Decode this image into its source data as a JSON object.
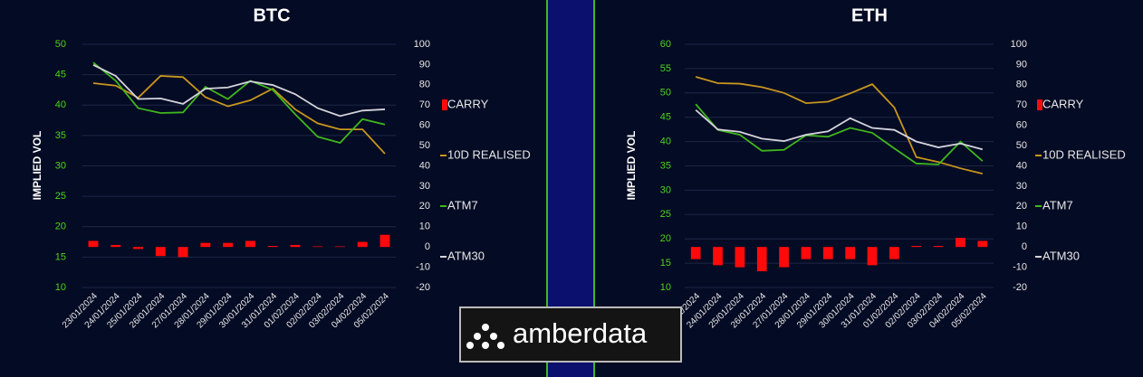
{
  "chart_data": [
    {
      "type": "combo",
      "title": "BTC",
      "y_label": "IMPLIED VOL",
      "categories": [
        "23/01/2024",
        "24/01/2024",
        "25/01/2024",
        "26/01/2024",
        "27/01/2024",
        "28/01/2024",
        "29/01/2024",
        "30/01/2024",
        "31/01/2024",
        "01/02/2024",
        "02/02/2024",
        "03/02/2024",
        "04/02/2024",
        "05/02/2024"
      ],
      "ylim": [
        10,
        50
      ],
      "yticks": [
        10,
        15,
        20,
        25,
        30,
        35,
        40,
        45,
        50
      ],
      "y2lim": [
        -20,
        100
      ],
      "y2ticks": [
        -20,
        -10,
        0,
        10,
        20,
        30,
        40,
        50,
        60,
        70,
        80,
        90,
        100
      ],
      "grid": true,
      "legend": "right",
      "series": [
        {
          "name": "CARRY",
          "kind": "bar",
          "axis": "y2",
          "color": "#ff0a0a",
          "values": [
            3,
            1,
            -1,
            -4.5,
            -5,
            2,
            2,
            3,
            0.5,
            1,
            0.3,
            0.3,
            2.5,
            6
          ]
        },
        {
          "name": "10D REALISED",
          "kind": "line",
          "color": "#c8961e",
          "values": [
            43.6,
            43.2,
            41.2,
            44.8,
            44.6,
            41.3,
            39.8,
            40.8,
            42.7,
            39.3,
            37,
            36,
            36,
            32
          ]
        },
        {
          "name": "ATM7",
          "kind": "line",
          "color": "#3fb81c",
          "values": [
            47,
            44,
            39.5,
            38.7,
            38.8,
            43,
            41,
            44,
            42.5,
            38.5,
            34.8,
            33.8,
            37.7,
            36.8
          ]
        },
        {
          "name": "ATM30",
          "kind": "line",
          "color": "#d4d4dc",
          "values": [
            46.6,
            44.8,
            41,
            41.1,
            40.2,
            42.7,
            42.9,
            43.9,
            43.3,
            41.8,
            39.5,
            38.2,
            39.1,
            39.3
          ]
        }
      ]
    },
    {
      "type": "combo",
      "title": "ETH",
      "y_label": "IMPLIED VOL",
      "categories": [
        "23/01/2024",
        "24/01/2024",
        "25/01/2024",
        "26/01/2024",
        "27/01/2024",
        "28/01/2024",
        "29/01/2024",
        "30/01/2024",
        "31/01/2024",
        "01/02/2024",
        "02/02/2024",
        "03/02/2024",
        "04/02/2024",
        "05/02/2024"
      ],
      "ylim": [
        10,
        60
      ],
      "yticks": [
        10,
        15,
        20,
        25,
        30,
        35,
        40,
        45,
        50,
        55,
        60
      ],
      "y2lim": [
        -20,
        100
      ],
      "y2ticks": [
        -20,
        -10,
        0,
        10,
        20,
        30,
        40,
        50,
        60,
        70,
        80,
        90,
        100
      ],
      "grid": true,
      "legend": "right",
      "series": [
        {
          "name": "CARRY",
          "kind": "bar",
          "axis": "y2",
          "color": "#ff0a0a",
          "values": [
            -6,
            -9,
            -10,
            -12,
            -10,
            -6,
            -6,
            -6,
            -9,
            -6,
            0.5,
            0.5,
            4.5,
            3
          ]
        },
        {
          "name": "10D REALISED",
          "kind": "line",
          "color": "#c8961e",
          "values": [
            53.3,
            52,
            51.9,
            51.2,
            50,
            47.9,
            48.2,
            49.9,
            51.8,
            47,
            36.8,
            35.8,
            34.5,
            33.4
          ]
        },
        {
          "name": "ATM7",
          "kind": "line",
          "color": "#3fb81c",
          "values": [
            47.7,
            42.4,
            41.4,
            38.1,
            38.3,
            41.3,
            41,
            42.8,
            41.8,
            38.6,
            35.5,
            35.3,
            40,
            36
          ]
        },
        {
          "name": "ATM30",
          "kind": "line",
          "color": "#d4d4dc",
          "values": [
            46.5,
            42.5,
            42,
            40.6,
            40.1,
            41.4,
            42.1,
            44.8,
            42.8,
            42.4,
            40,
            38.8,
            39.6,
            38.4
          ]
        }
      ]
    }
  ],
  "logo_text": "amberdata"
}
